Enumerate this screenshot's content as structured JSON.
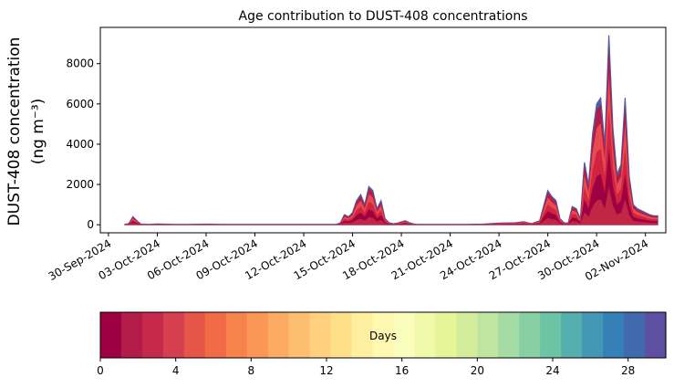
{
  "chart_data": {
    "type": "area",
    "title": "Age contribution to DUST-408 concentrations",
    "ylabel_line1": "DUST-408 concentration",
    "ylabel_line2": "(ng m⁻³)",
    "xlabel": "",
    "ylim": [
      -400,
      9800
    ],
    "y_ticks": [
      0,
      2000,
      4000,
      6000,
      8000
    ],
    "x_range": [
      "2024-09-29T12:00",
      "2024-11-03T06:00"
    ],
    "x_ticks": [
      "2024-09-30",
      "2024-10-03",
      "2024-10-06",
      "2024-10-09",
      "2024-10-12",
      "2024-10-15",
      "2024-10-18",
      "2024-10-21",
      "2024-10-24",
      "2024-10-27",
      "2024-10-30",
      "2024-11-02"
    ],
    "x_tick_labels": [
      "30-Sep-2024",
      "03-Oct-2024",
      "06-Oct-2024",
      "09-Oct-2024",
      "12-Oct-2024",
      "15-Oct-2024",
      "18-Oct-2024",
      "21-Oct-2024",
      "24-Oct-2024",
      "27-Oct-2024",
      "30-Oct-2024",
      "02-Nov-2024"
    ],
    "total": {
      "x": [
        "2024-10-01T00:00",
        "2024-10-01T06:00",
        "2024-10-01T12:00",
        "2024-10-01T18:00",
        "2024-10-02T00:00",
        "2024-10-02T12:00",
        "2024-10-03T00:00",
        "2024-10-03T12:00",
        "2024-10-04T00:00",
        "2024-10-05T00:00",
        "2024-10-06T00:00",
        "2024-10-07T00:00",
        "2024-10-08T00:00",
        "2024-10-09T00:00",
        "2024-10-10T00:00",
        "2024-10-11T00:00",
        "2024-10-12T00:00",
        "2024-10-13T00:00",
        "2024-10-14T00:00",
        "2024-10-14T06:00",
        "2024-10-14T12:00",
        "2024-10-14T18:00",
        "2024-10-15T00:00",
        "2024-10-15T06:00",
        "2024-10-15T12:00",
        "2024-10-15T18:00",
        "2024-10-16T00:00",
        "2024-10-16T06:00",
        "2024-10-16T12:00",
        "2024-10-16T18:00",
        "2024-10-17T00:00",
        "2024-10-17T06:00",
        "2024-10-17T12:00",
        "2024-10-17T18:00",
        "2024-10-18T00:00",
        "2024-10-18T06:00",
        "2024-10-18T12:00",
        "2024-10-18T18:00",
        "2024-10-19T00:00",
        "2024-10-20T00:00",
        "2024-10-21T00:00",
        "2024-10-22T00:00",
        "2024-10-23T00:00",
        "2024-10-24T00:00",
        "2024-10-25T00:00",
        "2024-10-25T12:00",
        "2024-10-26T00:00",
        "2024-10-26T12:00",
        "2024-10-27T00:00",
        "2024-10-27T06:00",
        "2024-10-27T12:00",
        "2024-10-27T18:00",
        "2024-10-28T00:00",
        "2024-10-28T06:00",
        "2024-10-28T12:00",
        "2024-10-28T18:00",
        "2024-10-29T00:00",
        "2024-10-29T06:00",
        "2024-10-29T12:00",
        "2024-10-29T18:00",
        "2024-10-30T00:00",
        "2024-10-30T06:00",
        "2024-10-30T12:00",
        "2024-10-30T18:00",
        "2024-10-31T00:00",
        "2024-10-31T06:00",
        "2024-10-31T12:00",
        "2024-10-31T18:00",
        "2024-11-01T00:00",
        "2024-11-01T06:00",
        "2024-11-01T12:00",
        "2024-11-01T18:00",
        "2024-11-02T00:00",
        "2024-11-02T06:00",
        "2024-11-02T12:00",
        "2024-11-02T18:00"
      ],
      "y": [
        20,
        60,
        400,
        200,
        30,
        20,
        40,
        30,
        20,
        20,
        30,
        20,
        20,
        20,
        20,
        20,
        20,
        20,
        20,
        100,
        500,
        400,
        600,
        1200,
        1500,
        1000,
        1900,
        1700,
        800,
        1200,
        300,
        100,
        50,
        80,
        150,
        200,
        100,
        40,
        20,
        20,
        20,
        20,
        30,
        80,
        100,
        150,
        60,
        200,
        1700,
        1400,
        1200,
        300,
        100,
        80,
        900,
        800,
        300,
        3100,
        2000,
        4500,
        6000,
        6300,
        4000,
        9400,
        4800,
        2500,
        3000,
        6300,
        2400,
        1000,
        800,
        700,
        600,
        500,
        450,
        450
      ]
    },
    "stack_fraction": [
      0.95,
      0.8,
      0.6,
      0.4,
      0.2
    ],
    "stack_colors": [
      "#4e5fa6",
      "#b01d4a",
      "#e94a50",
      "#d0243f",
      "#9e0142",
      "#c22645"
    ],
    "colorbar": {
      "label": "Days",
      "range": [
        0,
        30
      ],
      "ticks": [
        0,
        4,
        8,
        12,
        16,
        20,
        24,
        28
      ],
      "colors": [
        "#9e0142",
        "#b21c48",
        "#c6294c",
        "#d63f4f",
        "#e55649",
        "#f06b46",
        "#f6824c",
        "#fa9756",
        "#fdab62",
        "#fdbf6f",
        "#fed07f",
        "#fee08b",
        "#feee9f",
        "#fef8b0",
        "#fbfdbc",
        "#f1f9aa",
        "#e6f598",
        "#d3ed9c",
        "#bfe5a0",
        "#a5dba4",
        "#88cfa4",
        "#6cc4a5",
        "#54aead",
        "#4197b4",
        "#3680b8",
        "#4169ae",
        "#5e4fa2"
      ]
    }
  }
}
